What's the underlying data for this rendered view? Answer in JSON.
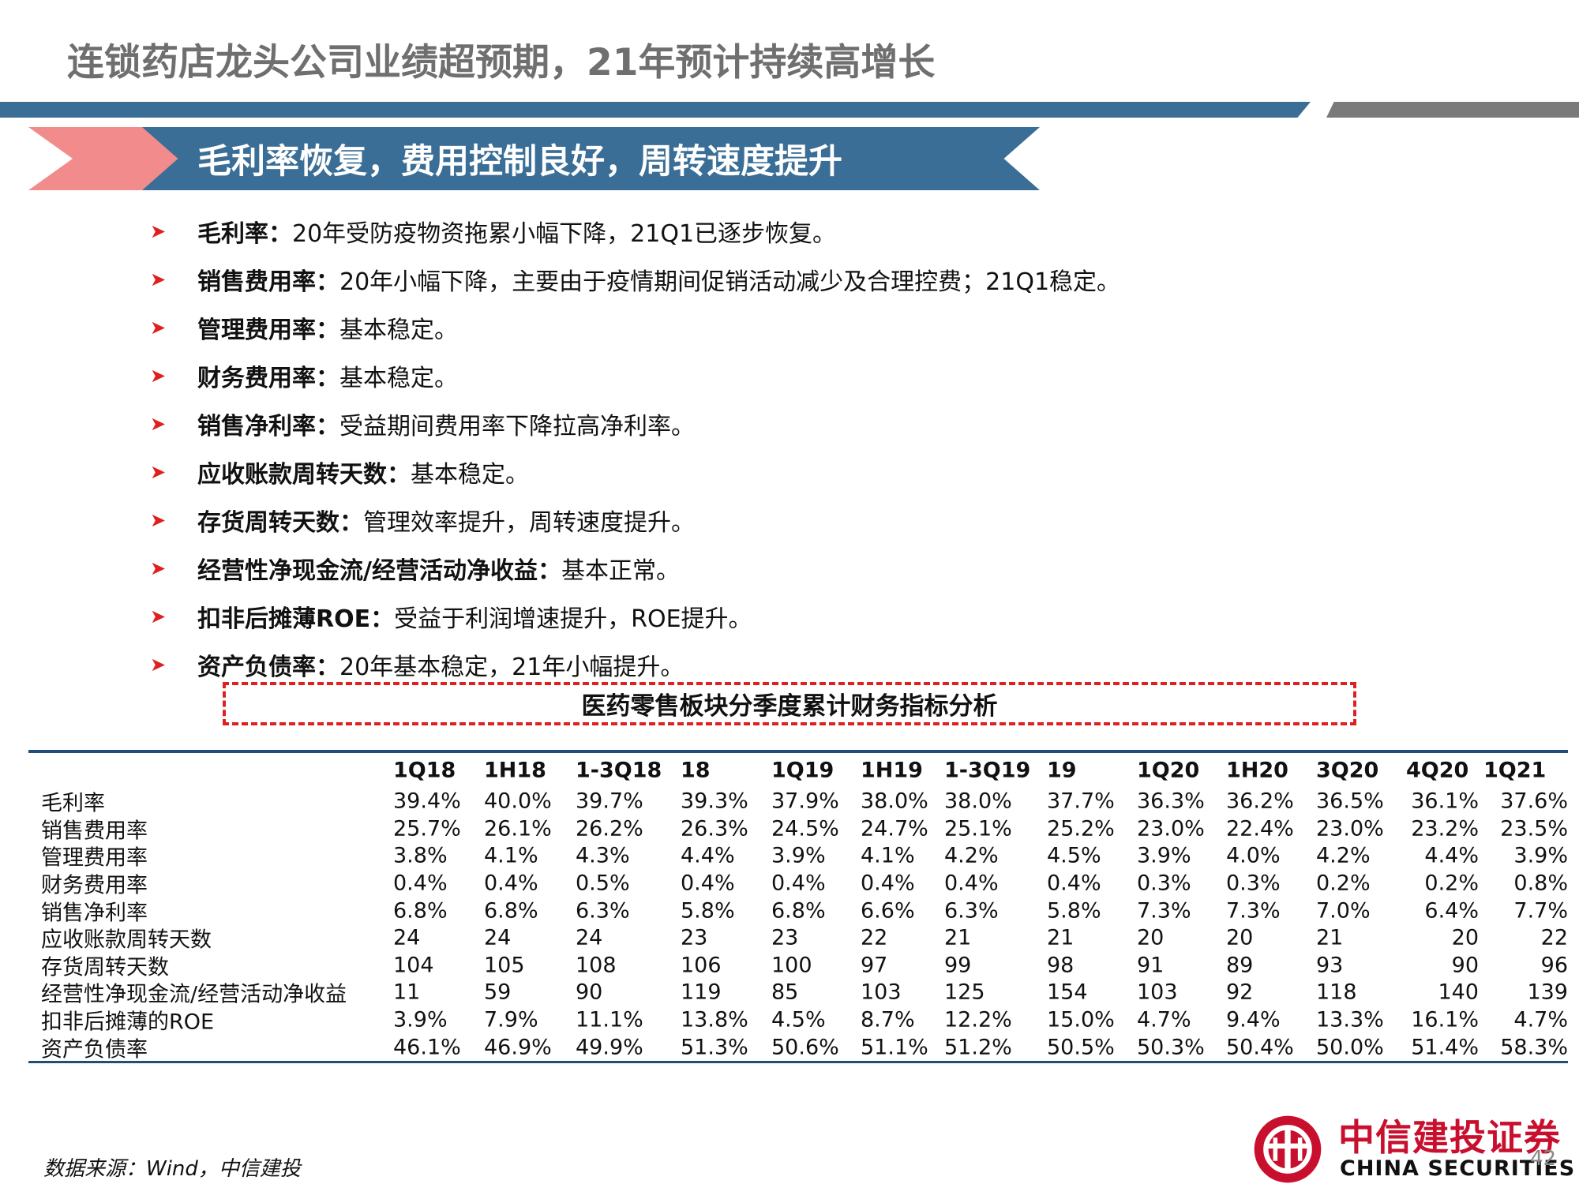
{
  "header": {
    "title": "连锁药店龙头公司业绩超预期，21年预计持续高增长"
  },
  "banner": {
    "text": "毛利率恢复，费用控制良好，周转速度提升"
  },
  "bullets": [
    {
      "term": "毛利率：",
      "text": "20年受防疫物资拖累小幅下降，21Q1已逐步恢复。"
    },
    {
      "term": "销售费用率：",
      "text": "20年小幅下降，主要由于疫情期间促销活动减少及合理控费；21Q1稳定。"
    },
    {
      "term": "管理费用率：",
      "text": "基本稳定。"
    },
    {
      "term": "财务费用率：",
      "text": "基本稳定。"
    },
    {
      "term": "销售净利率：",
      "text": "受益期间费用率下降拉高净利率。"
    },
    {
      "term": "应收账款周转天数：",
      "text": "基本稳定。"
    },
    {
      "term": "存货周转天数：",
      "text": "管理效率提升，周转速度提升。"
    },
    {
      "term": "经营性净现金流/经营活动净收益：",
      "text": "基本正常。"
    },
    {
      "term": "扣非后摊薄ROE：",
      "text": "受益于利润增速提升，ROE提升。"
    },
    {
      "term": "资产负债率：",
      "text": "20年基本稳定，21年小幅提升。"
    }
  ],
  "table": {
    "caption": "医药零售板块分季度累计财务指标分析",
    "columns": [
      "1Q18",
      "1H18",
      "1-3Q18",
      "18",
      "1Q19",
      "1H19",
      "1-3Q19",
      "19",
      "1Q20",
      "1H20",
      "3Q20",
      "4Q20",
      "1Q21"
    ],
    "rows": [
      {
        "label": "毛利率",
        "values": [
          "39.4%",
          "40.0%",
          "39.7%",
          "39.3%",
          "37.9%",
          "38.0%",
          "38.0%",
          "37.7%",
          "36.3%",
          "36.2%",
          "36.5%",
          "36.1%",
          "37.6%"
        ]
      },
      {
        "label": "销售费用率",
        "values": [
          "25.7%",
          "26.1%",
          "26.2%",
          "26.3%",
          "24.5%",
          "24.7%",
          "25.1%",
          "25.2%",
          "23.0%",
          "22.4%",
          "23.0%",
          "23.2%",
          "23.5%"
        ]
      },
      {
        "label": "管理费用率",
        "values": [
          "3.8%",
          "4.1%",
          "4.3%",
          "4.4%",
          "3.9%",
          "4.1%",
          "4.2%",
          "4.5%",
          "3.9%",
          "4.0%",
          "4.2%",
          "4.4%",
          "3.9%"
        ]
      },
      {
        "label": "财务费用率",
        "values": [
          "0.4%",
          "0.4%",
          "0.5%",
          "0.4%",
          "0.4%",
          "0.4%",
          "0.4%",
          "0.4%",
          "0.3%",
          "0.3%",
          "0.2%",
          "0.2%",
          "0.8%"
        ]
      },
      {
        "label": "销售净利率",
        "values": [
          "6.8%",
          "6.8%",
          "6.3%",
          "5.8%",
          "6.8%",
          "6.6%",
          "6.3%",
          "5.8%",
          "7.3%",
          "7.3%",
          "7.0%",
          "6.4%",
          "7.7%"
        ]
      },
      {
        "label": "应收账款周转天数",
        "values": [
          "24",
          "24",
          "24",
          "23",
          "23",
          "22",
          "21",
          "21",
          "20",
          "20",
          "21",
          "20",
          "22"
        ]
      },
      {
        "label": "存货周转天数",
        "values": [
          "104",
          "105",
          "108",
          "106",
          "100",
          "97",
          "99",
          "98",
          "91",
          "89",
          "93",
          "90",
          "96"
        ]
      },
      {
        "label": "经营性净现金流/经营活动净收益",
        "values": [
          "11",
          "59",
          "90",
          "119",
          "85",
          "103",
          "125",
          "154",
          "103",
          "92",
          "118",
          "140",
          "139"
        ]
      },
      {
        "label": "扣非后摊薄的ROE",
        "values": [
          "3.9%",
          "7.9%",
          "11.1%",
          "13.8%",
          "4.5%",
          "8.7%",
          "12.2%",
          "15.0%",
          "4.7%",
          "9.4%",
          "13.3%",
          "16.1%",
          "4.7%"
        ]
      },
      {
        "label": "资产负债率",
        "values": [
          "46.1%",
          "46.9%",
          "49.9%",
          "51.3%",
          "50.6%",
          "51.1%",
          "51.2%",
          "50.5%",
          "50.3%",
          "50.4%",
          "50.0%",
          "51.4%",
          "58.3%"
        ]
      }
    ]
  },
  "footer": {
    "source": "数据来源：Wind，中信建投",
    "logo_cn": "中信建投证券",
    "logo_en": "CHINA SECURITIES",
    "page": "42"
  },
  "colors": {
    "accent_blue": "#3a6e96",
    "accent_red": "#e02020",
    "logo_red": "#c8102e",
    "gray": "#7a7a7a"
  }
}
